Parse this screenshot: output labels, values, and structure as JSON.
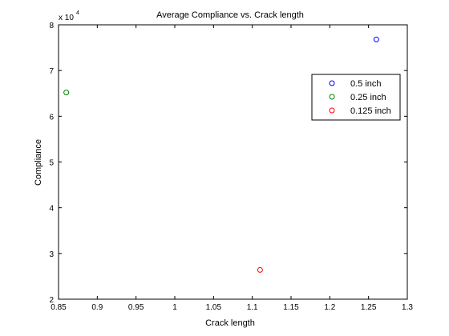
{
  "chart_data": {
    "type": "scatter",
    "title": "Average Compliance vs. Crack length",
    "xlabel": "Crack length",
    "ylabel": "Compliance",
    "y_exponent_label": {
      "base": "x 10",
      "exp": "4"
    },
    "xlim": [
      0.85,
      1.3
    ],
    "ylim": [
      20000,
      80000
    ],
    "xticks": [
      0.85,
      0.9,
      0.95,
      1,
      1.05,
      1.1,
      1.15,
      1.2,
      1.25,
      1.3
    ],
    "xtick_labels": [
      "0.85",
      "0.9",
      "0.95",
      "1",
      "1.05",
      "1.1",
      "1.15",
      "1.2",
      "1.25",
      "1.3"
    ],
    "yticks": [
      20000,
      30000,
      40000,
      50000,
      60000,
      70000,
      80000
    ],
    "ytick_labels": [
      "2",
      "3",
      "4",
      "5",
      "6",
      "7",
      "8"
    ],
    "grid": false,
    "legend_position": "top-right",
    "marker": "circle",
    "series": [
      {
        "name": "0.5 inch",
        "color": "#0000ff",
        "x": [
          1.26
        ],
        "y": [
          76800
        ]
      },
      {
        "name": "0.25 inch",
        "color": "#008000",
        "x": [
          0.86
        ],
        "y": [
          65200
        ]
      },
      {
        "name": "0.125 inch",
        "color": "#ff0000",
        "x": [
          1.11
        ],
        "y": [
          26400
        ]
      }
    ]
  }
}
